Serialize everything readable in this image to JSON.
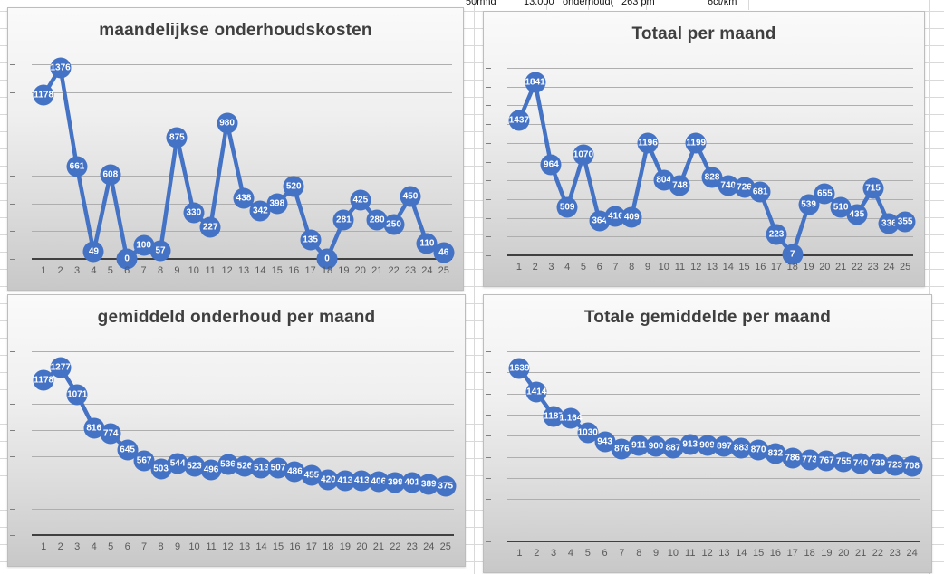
{
  "spreadsheet": {
    "cells": [
      {
        "text": "50mnd"
      },
      {
        "text": "13.000"
      },
      {
        "text": "onderhoud("
      },
      {
        "text": "263 pm"
      },
      {
        "text": "6ct/km"
      }
    ]
  },
  "accent_color": "#4472C4",
  "chart_data": [
    {
      "type": "line",
      "title": "maandelijkse onderhoudskosten",
      "categories": [
        1,
        2,
        3,
        4,
        5,
        6,
        7,
        8,
        9,
        10,
        11,
        12,
        13,
        14,
        15,
        16,
        17,
        18,
        19,
        20,
        21,
        22,
        23,
        24,
        25
      ],
      "values": [
        1178,
        1376,
        661,
        49,
        608,
        0,
        100,
        57,
        875,
        330,
        227,
        980,
        438,
        342,
        398,
        520,
        135,
        0,
        281,
        425,
        280,
        250,
        450,
        110,
        46
      ],
      "marker_labels": [
        "1178",
        "1376",
        "661",
        "49",
        "608",
        "0",
        "100",
        "57",
        "875",
        "330",
        "227",
        "980",
        "438",
        "342",
        "398",
        "520",
        "135",
        "0",
        "281",
        "425",
        "280",
        "250",
        "450",
        "110",
        "46"
      ],
      "xlabel": "",
      "ylabel": "",
      "ylim": [
        0,
        1400
      ],
      "grid_step": 200,
      "grid": true,
      "legend": "none",
      "marker_color": "#4472C4"
    },
    {
      "type": "line",
      "title": "Totaal per maand",
      "categories": [
        1,
        2,
        3,
        4,
        5,
        6,
        7,
        8,
        9,
        10,
        11,
        12,
        13,
        14,
        15,
        16,
        17,
        18,
        19,
        20,
        21,
        22,
        23,
        24,
        25
      ],
      "values": [
        1437,
        1841,
        964,
        509,
        1070,
        364,
        416,
        409,
        1196,
        804,
        748,
        1199,
        828,
        740,
        726,
        681,
        223,
        7,
        539,
        655,
        510,
        435,
        715,
        336,
        355
      ],
      "marker_labels": [
        "1437",
        "1841",
        "964",
        "509",
        "1070",
        "364",
        "416",
        "409",
        "1196",
        "804",
        "748",
        "1199",
        "828",
        "740",
        "726",
        "681",
        "223",
        "7",
        "539",
        "655",
        "510",
        "435",
        "715",
        "336",
        "355"
      ],
      "xlabel": "",
      "ylabel": "",
      "ylim": [
        0,
        2000
      ],
      "grid_step": 200,
      "grid": true,
      "legend": "none",
      "marker_color": "#4472C4"
    },
    {
      "type": "line",
      "title": "gemiddeld onderhoud per maand",
      "categories": [
        1,
        2,
        3,
        4,
        5,
        6,
        7,
        8,
        9,
        10,
        11,
        12,
        13,
        14,
        15,
        16,
        17,
        18,
        19,
        20,
        21,
        22,
        23,
        24,
        25
      ],
      "values": [
        1178,
        1277,
        1071,
        816,
        774,
        645,
        567,
        503,
        544,
        523,
        496,
        536,
        526,
        513,
        507,
        486,
        455,
        420,
        413,
        413,
        406,
        399,
        401,
        389,
        375
      ],
      "marker_labels": [
        "1178",
        "1277",
        "1071",
        "816",
        "774",
        "645",
        "567",
        "503",
        "544",
        "523",
        "496",
        "536",
        "526",
        "513",
        "507",
        "486",
        "455",
        "420",
        "413",
        "413",
        "406",
        "399",
        "401",
        "389",
        "375"
      ],
      "xlabel": "",
      "ylabel": "",
      "ylim": [
        0,
        1400
      ],
      "grid_step": 200,
      "grid": true,
      "legend": "none",
      "marker_color": "#4472C4"
    },
    {
      "type": "line",
      "title": "Totale gemiddelde per maand",
      "categories": [
        1,
        2,
        3,
        4,
        5,
        6,
        7,
        8,
        9,
        10,
        11,
        12,
        13,
        14,
        15,
        16,
        17,
        18,
        19,
        20,
        21,
        22,
        23,
        24
      ],
      "values": [
        1639,
        1414,
        1187,
        1164,
        1030,
        943,
        876,
        911,
        900,
        887,
        913,
        909,
        897,
        883,
        870,
        832,
        786,
        773,
        767,
        755,
        740,
        739,
        723,
        708
      ],
      "marker_labels": [
        "1639",
        "1414",
        "1187",
        "1.164",
        "1030",
        "943",
        "876",
        "911",
        "900",
        "887",
        "913",
        "909",
        "897",
        "883",
        "870",
        "832",
        "786",
        "773",
        "767",
        "755",
        "740",
        "739",
        "723",
        "708"
      ],
      "xlabel": "",
      "ylabel": "",
      "ylim": [
        0,
        1800
      ],
      "grid_step": 200,
      "grid": true,
      "legend": "none",
      "marker_color": "#4472C4"
    }
  ]
}
